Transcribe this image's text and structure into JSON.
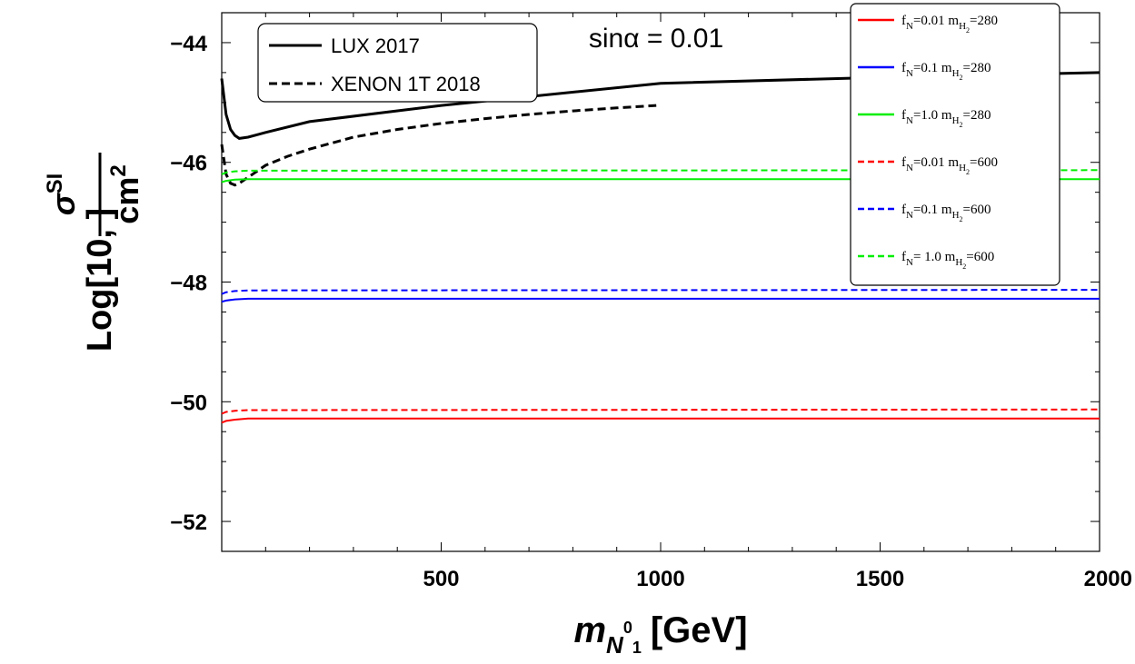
{
  "chart_data": {
    "type": "line",
    "annotation": "sinα = 0.01",
    "annotation_color": "#8b1a8b",
    "xlabel": {
      "main": "m",
      "sub": "N",
      "sup": "0",
      "sub2": "1",
      "units": "[GeV]"
    },
    "ylabel": {
      "log": "Log[10,",
      "close": "]",
      "num_sym": "σ",
      "num_sup": "SI",
      "den": "cm",
      "den_sup": "2"
    },
    "xlim": [
      0,
      2000
    ],
    "ylim": [
      -52.5,
      -43.5
    ],
    "xticks": [
      "500",
      "1000",
      "1500",
      "2000"
    ],
    "xtick_values": [
      500,
      1000,
      1500,
      2000
    ],
    "yticks": [
      "-44",
      "-46",
      "-48",
      "-50",
      "-52"
    ],
    "ytick_values": [
      -44,
      -46,
      -48,
      -50,
      -52
    ],
    "series": [
      {
        "name": "LUX 2017",
        "color": "#000000",
        "dash": false,
        "x": [
          0,
          10,
          20,
          30,
          40,
          60,
          80,
          100,
          200,
          500,
          1000,
          1500,
          2000
        ],
        "y": [
          -44.6,
          -45.2,
          -45.45,
          -45.55,
          -45.6,
          -45.58,
          -45.54,
          -45.5,
          -45.32,
          -45.05,
          -44.68,
          -44.58,
          -44.5
        ]
      },
      {
        "name": "XENON 1T 2018",
        "color": "#000000",
        "dash": true,
        "x": [
          0,
          10,
          20,
          30,
          40,
          60,
          80,
          100,
          150,
          200,
          300,
          400,
          500,
          600,
          700,
          800,
          900,
          990
        ],
        "y": [
          -45.7,
          -46.2,
          -46.35,
          -46.38,
          -46.35,
          -46.25,
          -46.15,
          -46.05,
          -45.9,
          -45.78,
          -45.58,
          -45.45,
          -45.35,
          -45.27,
          -45.2,
          -45.14,
          -45.09,
          -45.05
        ]
      },
      {
        "name": "f_N=0.01 m_H2=280",
        "color": "#ff0000",
        "dash": false,
        "x": [
          0,
          10,
          30,
          60,
          2000
        ],
        "y": [
          -50.35,
          -50.32,
          -50.3,
          -50.28,
          -50.28
        ]
      },
      {
        "name": "f_N=0.1 m_H2=280",
        "color": "#0000ff",
        "dash": false,
        "x": [
          0,
          10,
          30,
          60,
          2000
        ],
        "y": [
          -48.33,
          -48.31,
          -48.29,
          -48.28,
          -48.28
        ]
      },
      {
        "name": "f_N=1.0 m_H2=280",
        "color": "#00ee00",
        "dash": false,
        "x": [
          0,
          10,
          30,
          60,
          2000
        ],
        "y": [
          -46.33,
          -46.31,
          -46.29,
          -46.28,
          -46.28
        ]
      },
      {
        "name": "f_N=0.01 m_H2=600",
        "color": "#ff0000",
        "dash": true,
        "x": [
          0,
          10,
          30,
          60,
          2000
        ],
        "y": [
          -50.2,
          -50.17,
          -50.15,
          -50.14,
          -50.13
        ]
      },
      {
        "name": "f_N=0.1 m_H2=600",
        "color": "#0000ff",
        "dash": true,
        "x": [
          0,
          10,
          30,
          60,
          2000
        ],
        "y": [
          -48.2,
          -48.17,
          -48.15,
          -48.14,
          -48.13
        ]
      },
      {
        "name": "f_N=1.0 m_H2=600",
        "color": "#00ee00",
        "dash": true,
        "x": [
          0,
          10,
          30,
          60,
          2000
        ],
        "y": [
          -46.2,
          -46.17,
          -46.15,
          -46.14,
          -46.13
        ]
      }
    ],
    "legend_experiments": [
      {
        "label": "LUX 2017",
        "dash": false,
        "color": "#000000"
      },
      {
        "label": "XENON 1T 2018",
        "dash": true,
        "color": "#000000"
      }
    ],
    "legend_models": [
      {
        "f": "f",
        "fsub": "N",
        "fval": "=0.01",
        "m": "m",
        "msub": "H",
        "msub2": "2",
        "mval": "=280",
        "color": "#ff0000",
        "dash": false
      },
      {
        "f": "f",
        "fsub": "N",
        "fval": "=0.1",
        "m": "m",
        "msub": "H",
        "msub2": "2",
        "mval": "=280",
        "color": "#0000ff",
        "dash": false
      },
      {
        "f": "f",
        "fsub": "N",
        "fval": "=1.0",
        "m": "m",
        "msub": "H",
        "msub2": "2",
        "mval": "=280",
        "color": "#00ee00",
        "dash": false
      },
      {
        "f": "f",
        "fsub": "N",
        "fval": "=0.01",
        "m": "m",
        "msub": "H",
        "msub2": "2",
        "mval": "=600",
        "color": "#ff0000",
        "dash": true
      },
      {
        "f": "f",
        "fsub": "N",
        "fval": "=0.1",
        "m": "m",
        "msub": "H",
        "msub2": "2",
        "mval": "=600",
        "color": "#0000ff",
        "dash": true
      },
      {
        "f": "f",
        "fsub": "N",
        "fval": "= 1.0",
        "m": "m",
        "msub": "H",
        "msub2": "2",
        "mval": "=600",
        "color": "#00ee00",
        "dash": true
      }
    ],
    "legend_experiments_position": "top-left",
    "legend_models_position": "top-right",
    "grid": false
  }
}
